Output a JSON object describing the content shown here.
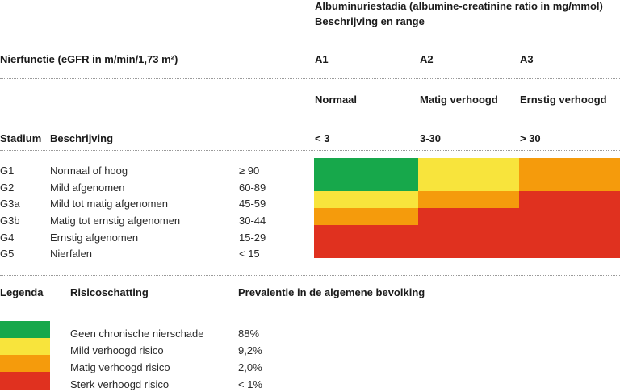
{
  "header": {
    "albuminuria_title": "Albuminuriestadia (albumine-creatinine ratio in mg/mmol)",
    "albuminuria_subtitle": "Beschrijving en range",
    "kidney_function": "Nierfunctie (eGFR in m/min/1,73 m²)",
    "stadium": "Stadium",
    "description": "Beschrijving",
    "stages": [
      {
        "code": "A1",
        "label": "Normaal",
        "range": "< 3"
      },
      {
        "code": "A2",
        "label": "Matig verhoogd",
        "range": "3-30"
      },
      {
        "code": "A3",
        "label": "Ernstig verhoogd",
        "range": "> 30"
      }
    ]
  },
  "rows": [
    {
      "stage": "G1",
      "description": "Normaal of hoog",
      "range": "≥ 90",
      "colors": [
        "#17a84b",
        "#f8e43c",
        "#f59b0c"
      ]
    },
    {
      "stage": "G2",
      "description": "Mild afgenomen",
      "range": "60-89",
      "colors": [
        "#17a84b",
        "#f8e43c",
        "#f59b0c"
      ]
    },
    {
      "stage": "G3a",
      "description": "Mild tot matig afgenomen",
      "range": "45-59",
      "colors": [
        "#f8e43c",
        "#f59b0c",
        "#e0311f"
      ]
    },
    {
      "stage": "G3b",
      "description": "Matig tot ernstig afgenomen",
      "range": "30-44",
      "colors": [
        "#f59b0c",
        "#e0311f",
        "#e0311f"
      ]
    },
    {
      "stage": "G4",
      "description": "Ernstig afgenomen",
      "range": "15-29",
      "colors": [
        "#e0311f",
        "#e0311f",
        "#e0311f"
      ]
    },
    {
      "stage": "G5",
      "description": "Nierfalen",
      "range": "< 15",
      "colors": [
        "#e0311f",
        "#e0311f",
        "#e0311f"
      ]
    }
  ],
  "legend": {
    "title": "Legenda",
    "risk": "Risicoschatting",
    "prevalence": "Prevalentie in de algemene bevolking",
    "items": [
      {
        "color": "#17a84b",
        "label": "Geen chronische nierschade",
        "prevalence": "88%"
      },
      {
        "color": "#f8e43c",
        "label": "Mild verhoogd risico",
        "prevalence": "9,2%"
      },
      {
        "color": "#f59b0c",
        "label": "Matig verhoogd risico",
        "prevalence": "2,0%"
      },
      {
        "color": "#e0311f",
        "label": "Sterk verhoogd risico",
        "prevalence": "< 1%"
      }
    ]
  }
}
